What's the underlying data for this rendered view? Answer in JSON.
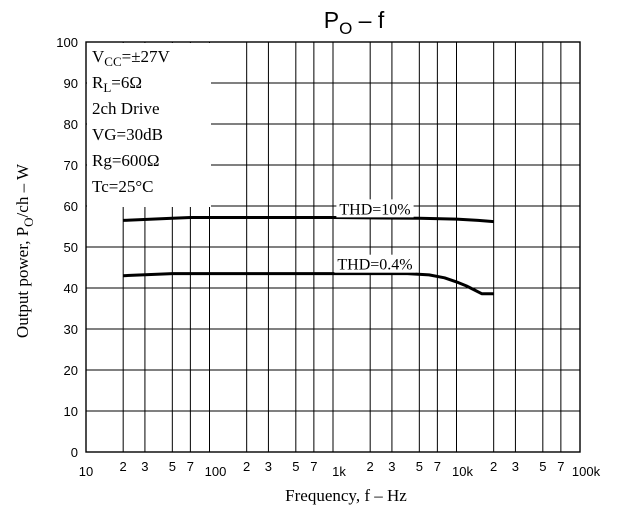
{
  "chart_data": {
    "type": "line",
    "title_main": "P",
    "title_sub": "O",
    "title_rest": " – f",
    "xlabel": "Frequency,  f  –  Hz",
    "ylabel_pre": "Output power,  P",
    "ylabel_sub": "O",
    "ylabel_post": "/ch  –  W",
    "x_scale": "log",
    "xlim": [
      10,
      100000
    ],
    "ylim": [
      0,
      100
    ],
    "grid": true,
    "y_ticks": [
      "0",
      "10",
      "20",
      "30",
      "40",
      "50",
      "60",
      "70",
      "80",
      "90",
      "100"
    ],
    "x_decade_labels": [
      "10",
      "100",
      "1k",
      "10k",
      "100k"
    ],
    "x_minor_labels": [
      "2",
      "3",
      "5",
      "7"
    ],
    "conditions": [
      {
        "main": "V",
        "sub": "CC",
        "rest": "=±27V"
      },
      {
        "main": "R",
        "sub": "L",
        "rest": "=6Ω"
      },
      {
        "main": "2ch Drive",
        "sub": "",
        "rest": ""
      },
      {
        "main": "VG=30dB",
        "sub": "",
        "rest": ""
      },
      {
        "main": "Rg=600Ω",
        "sub": "",
        "rest": ""
      },
      {
        "main": "Tc=25°C",
        "sub": "",
        "rest": ""
      }
    ],
    "series": [
      {
        "name": "THD=10%",
        "x": [
          20,
          50,
          70,
          100,
          1000,
          5000,
          10000,
          15000,
          20000
        ],
        "y": [
          56.5,
          57,
          57.2,
          57.2,
          57.2,
          57,
          56.8,
          56.5,
          56.2
        ]
      },
      {
        "name": "THD=0.4%",
        "x": [
          20,
          50,
          70,
          100,
          1000,
          4000,
          6000,
          8000,
          10000,
          12000,
          14000,
          16000,
          20000
        ],
        "y": [
          43,
          43.5,
          43.5,
          43.5,
          43.5,
          43.5,
          43.2,
          42.5,
          41.5,
          40.5,
          39.5,
          38.6,
          38.6
        ]
      }
    ]
  }
}
